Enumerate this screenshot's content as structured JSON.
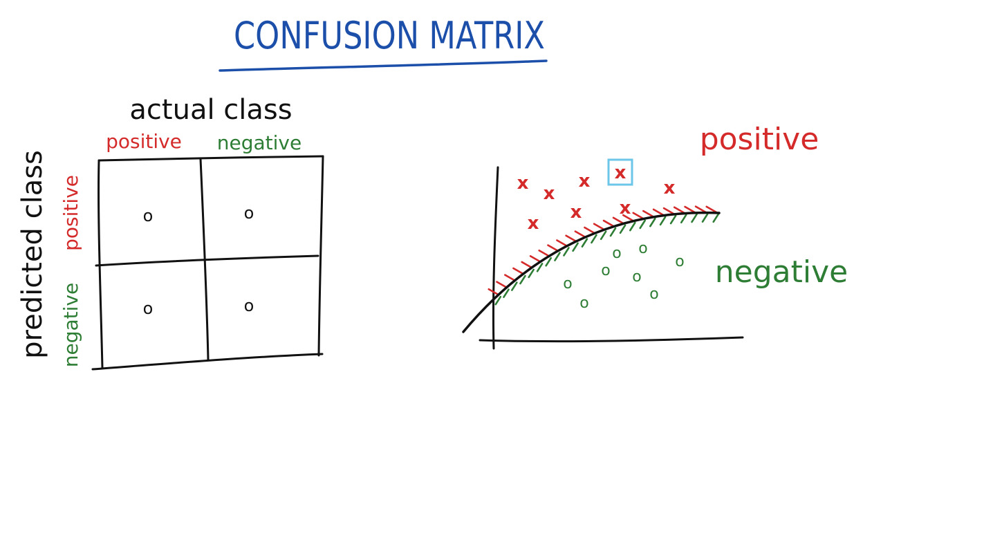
{
  "title": "CONFUSION MATRIX",
  "matrix": {
    "column_header": "actual class",
    "row_header": "predicted class",
    "columns": [
      "positive",
      "negative"
    ],
    "rows": [
      "positive",
      "negative"
    ],
    "cells": [
      [
        "o",
        "o"
      ],
      [
        "o",
        "o"
      ]
    ]
  },
  "scatter": {
    "region_labels": {
      "positive": "positive",
      "negative": "negative"
    },
    "markers": {
      "positive": "x",
      "negative": "o"
    }
  },
  "colors": {
    "title": "#1c4faa",
    "ink": "#111111",
    "positive": "#d42a2a",
    "negative": "#2e7d35",
    "highlight": "#6cc6ea"
  }
}
